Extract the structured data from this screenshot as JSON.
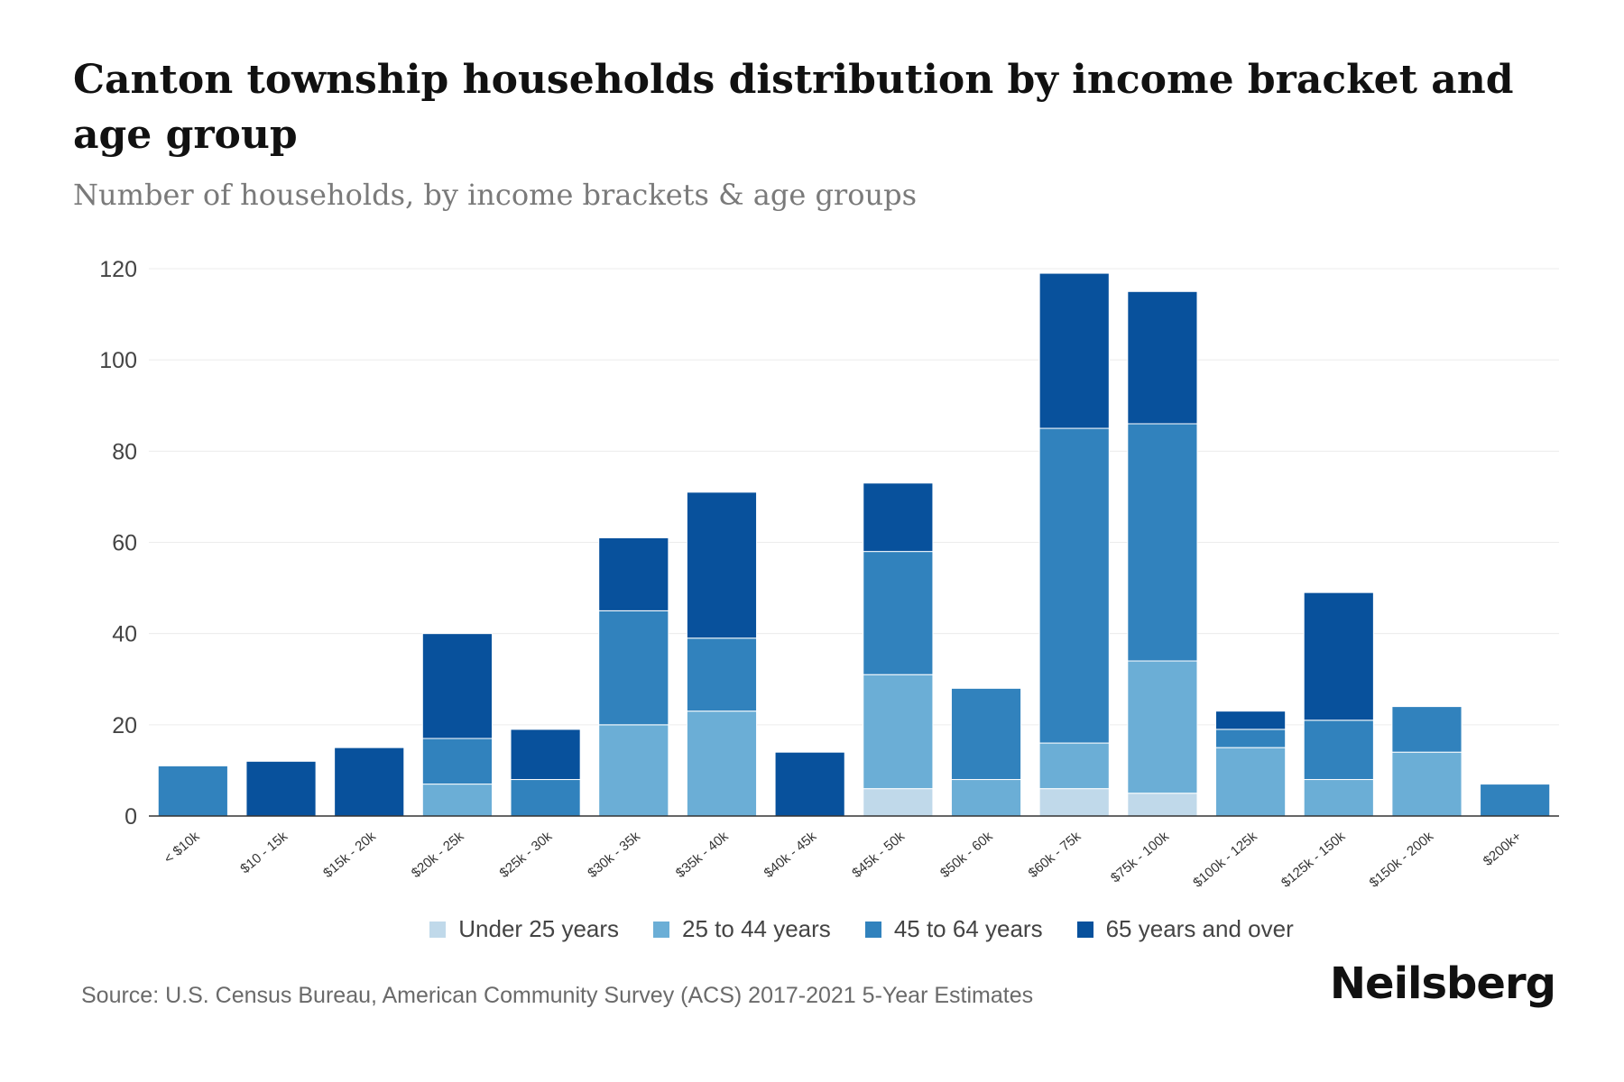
{
  "chart_data": {
    "type": "bar",
    "stacked": true,
    "title": "Canton township households distribution by income bracket and age group",
    "subtitle": "Number of households, by income brackets & age groups",
    "xlabel": "",
    "ylabel": "",
    "ylim": [
      0,
      120
    ],
    "yticks": [
      0,
      20,
      40,
      60,
      80,
      100,
      120
    ],
    "grid": true,
    "legend_position": "bottom",
    "categories": [
      "< $10k",
      "$10 - 15k",
      "$15k - 20k",
      "$20k - 25k",
      "$25k - 30k",
      "$30k - 35k",
      "$35k - 40k",
      "$40k - 45k",
      "$45k - 50k",
      "$50k - 60k",
      "$60k - 75k",
      "$75k - 100k",
      "$100k - 125k",
      "$125k - 150k",
      "$150k - 200k",
      "$200k+"
    ],
    "series": [
      {
        "name": "Under 25 years",
        "color": "#c0d9ea",
        "values": [
          0,
          0,
          0,
          0,
          0,
          0,
          0,
          0,
          6,
          0,
          6,
          5,
          0,
          0,
          0,
          0
        ]
      },
      {
        "name": "25 to 44 years",
        "color": "#6baed6",
        "values": [
          0,
          0,
          0,
          7,
          0,
          20,
          23,
          0,
          25,
          8,
          10,
          29,
          15,
          8,
          14,
          0
        ]
      },
      {
        "name": "45 to 64 years",
        "color": "#3182bd",
        "values": [
          11,
          0,
          0,
          10,
          8,
          25,
          16,
          0,
          27,
          20,
          69,
          52,
          4,
          13,
          10,
          7
        ]
      },
      {
        "name": "65 years and over",
        "color": "#08519c",
        "values": [
          0,
          12,
          15,
          23,
          11,
          16,
          32,
          14,
          15,
          0,
          34,
          29,
          4,
          28,
          0,
          0
        ]
      }
    ],
    "source": "Source: U.S. Census Bureau, American Community Survey (ACS) 2017-2021 5-Year Estimates",
    "brand": "Neilsberg"
  }
}
